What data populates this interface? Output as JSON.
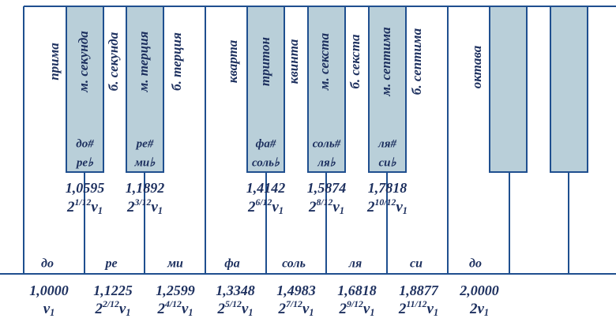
{
  "intervals": [
    "прима",
    "м. секунда",
    "б. секунда",
    "м. терция",
    "б. терция",
    "кварта",
    "тритон",
    "квинта",
    "м. секста",
    "б. секста",
    "м. септима",
    "б. септима",
    "октава"
  ],
  "black_keys": [
    {
      "sharp": "до#",
      "flat": "ре♭",
      "ratio": "1,0595",
      "formula": {
        "base": "2",
        "exp": "1/12",
        "nu": "ν",
        "sub": "1"
      }
    },
    {
      "sharp": "ре#",
      "flat": "ми♭",
      "ratio": "1,1892",
      "formula": {
        "base": "2",
        "exp": "3/12",
        "nu": "ν",
        "sub": "1"
      }
    },
    {
      "sharp": "фа#",
      "flat": "соль♭",
      "ratio": "1,4142",
      "formula": {
        "base": "2",
        "exp": "6/12",
        "nu": "ν",
        "sub": "1"
      }
    },
    {
      "sharp": "соль#",
      "flat": "ля♭",
      "ratio": "1,5874",
      "formula": {
        "base": "2",
        "exp": "8/12",
        "nu": "ν",
        "sub": "1"
      }
    },
    {
      "sharp": "ля#",
      "flat": "си♭",
      "ratio": "1,7818",
      "formula": {
        "base": "2",
        "exp": "10/12",
        "nu": "ν",
        "sub": "1"
      }
    }
  ],
  "white_keys": [
    {
      "note": "до",
      "ratio": "1,0000",
      "formula": {
        "nu": "ν",
        "sub": "1"
      }
    },
    {
      "note": "ре",
      "ratio": "1,1225",
      "formula": {
        "base": "2",
        "exp": "2/12",
        "nu": "ν",
        "sub": "1"
      }
    },
    {
      "note": "ми",
      "ratio": "1,2599",
      "formula": {
        "base": "2",
        "exp": "4/12",
        "nu": "ν",
        "sub": "1"
      }
    },
    {
      "note": "фа",
      "ratio": "1,3348",
      "formula": {
        "base": "2",
        "exp": "5/12",
        "nu": "ν",
        "sub": "1"
      }
    },
    {
      "note": "соль",
      "ratio": "1,4983",
      "formula": {
        "base": "2",
        "exp": "7/12",
        "nu": "ν",
        "sub": "1"
      }
    },
    {
      "note": "ля",
      "ratio": "1,6818",
      "formula": {
        "base": "2",
        "exp": "9/12",
        "nu": "ν",
        "sub": "1"
      }
    },
    {
      "note": "си",
      "ratio": "1,8877",
      "formula": {
        "base": "2",
        "exp": "11/12",
        "nu": "ν",
        "sub": "1"
      }
    },
    {
      "note": "до",
      "ratio": "2,0000",
      "formula": {
        "base": "2",
        "nu": "ν",
        "sub": "1"
      }
    }
  ]
}
